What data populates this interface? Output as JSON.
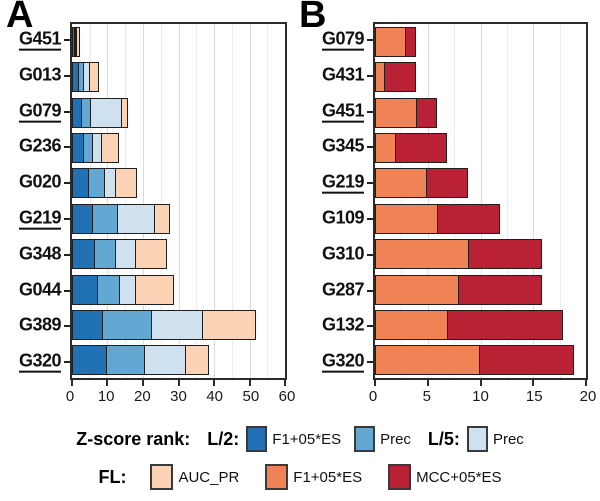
{
  "panel_letters": [
    "A",
    "B"
  ],
  "colors": {
    "blue_dark": "#2171b5",
    "blue_mid": "#63a8d2",
    "blue_light": "#cfe1ee",
    "peach": "#fbd2b4",
    "orange": "#ef8355",
    "red": "#ba2134",
    "bar_border": "#1f1f1f",
    "panel_border": "#2b2b2b",
    "axis_text": "#1a1a1a",
    "grid_major": "#dcdcdc",
    "grid_minor": "#ececec"
  },
  "chart_data": [
    {
      "type": "bar",
      "orientation": "horizontal",
      "panel": "A",
      "categories": [
        "G451",
        "G013",
        "G079",
        "G236",
        "G020",
        "G219",
        "G348",
        "G044",
        "G389",
        "G320"
      ],
      "underlined": [
        "G451",
        "G079",
        "G219",
        "G320"
      ],
      "series": [
        {
          "name": "Z-score rank L/2: F1+05*ES",
          "color_key": "blue_dark",
          "values": [
            1,
            2,
            3,
            3.5,
            5,
            6,
            6.5,
            7.5,
            9,
            10
          ]
        },
        {
          "name": "Z-score rank L/2: Prec",
          "color_key": "blue_mid",
          "values": [
            0.75,
            2,
            3,
            3,
            5,
            7.5,
            6.5,
            6.5,
            14,
            11
          ]
        },
        {
          "name": "Z-score rank L/5: Prec",
          "color_key": "blue_light",
          "values": [
            0.75,
            2,
            9,
            3,
            3.5,
            11,
            6,
            5,
            15,
            12
          ]
        },
        {
          "name": "FL: AUC_PR",
          "color_key": "peach",
          "values": [
            1,
            3,
            2,
            5,
            6,
            4.5,
            9,
            11,
            15,
            7
          ]
        }
      ],
      "totals": [
        3.5,
        9,
        17,
        14.5,
        19.5,
        29,
        28,
        30,
        53,
        40
      ],
      "xlim": [
        0,
        60
      ],
      "xticks": [
        0,
        10,
        20,
        30,
        40,
        50,
        60
      ],
      "minor_ticks": [
        5,
        15,
        25,
        35,
        45,
        55
      ],
      "grid": true
    },
    {
      "type": "bar",
      "orientation": "horizontal",
      "panel": "B",
      "categories": [
        "G079",
        "G431",
        "G451",
        "G345",
        "G219",
        "G109",
        "G310",
        "G287",
        "G132",
        "G320"
      ],
      "underlined": [
        "G079",
        "G451",
        "G219",
        "G320"
      ],
      "series": [
        {
          "name": "FL: F1+05*ES",
          "color_key": "orange",
          "values": [
            3,
            1,
            4,
            2,
            5,
            6,
            9,
            8,
            7,
            10
          ]
        },
        {
          "name": "FL: MCC+05*ES",
          "color_key": "red",
          "values": [
            1,
            3,
            2,
            5,
            4,
            6,
            7,
            8,
            11,
            9
          ]
        }
      ],
      "totals": [
        4,
        4,
        6,
        7,
        9,
        12,
        16,
        16,
        18,
        19
      ],
      "xlim": [
        0,
        20
      ],
      "xticks": [
        0,
        5,
        10,
        15,
        20
      ],
      "minor_ticks": [
        2.5,
        7.5,
        12.5,
        17.5
      ],
      "grid": true
    }
  ],
  "legend": {
    "rows": [
      {
        "title": "Z-score rank:",
        "groups": [
          {
            "label": "L/2:",
            "items": [
              {
                "color_key": "blue_dark",
                "text": "F1+05*ES"
              },
              {
                "color_key": "blue_mid",
                "text": "Prec"
              }
            ]
          },
          {
            "label": "L/5:",
            "items": [
              {
                "color_key": "blue_light",
                "text": "Prec"
              }
            ]
          }
        ]
      },
      {
        "title": "FL:",
        "groups": [
          {
            "label": "",
            "items": [
              {
                "color_key": "peach",
                "text": "AUC_PR"
              },
              {
                "color_key": "orange",
                "text": "F1+05*ES"
              },
              {
                "color_key": "red",
                "text": "MCC+05*ES"
              }
            ]
          }
        ]
      }
    ]
  }
}
